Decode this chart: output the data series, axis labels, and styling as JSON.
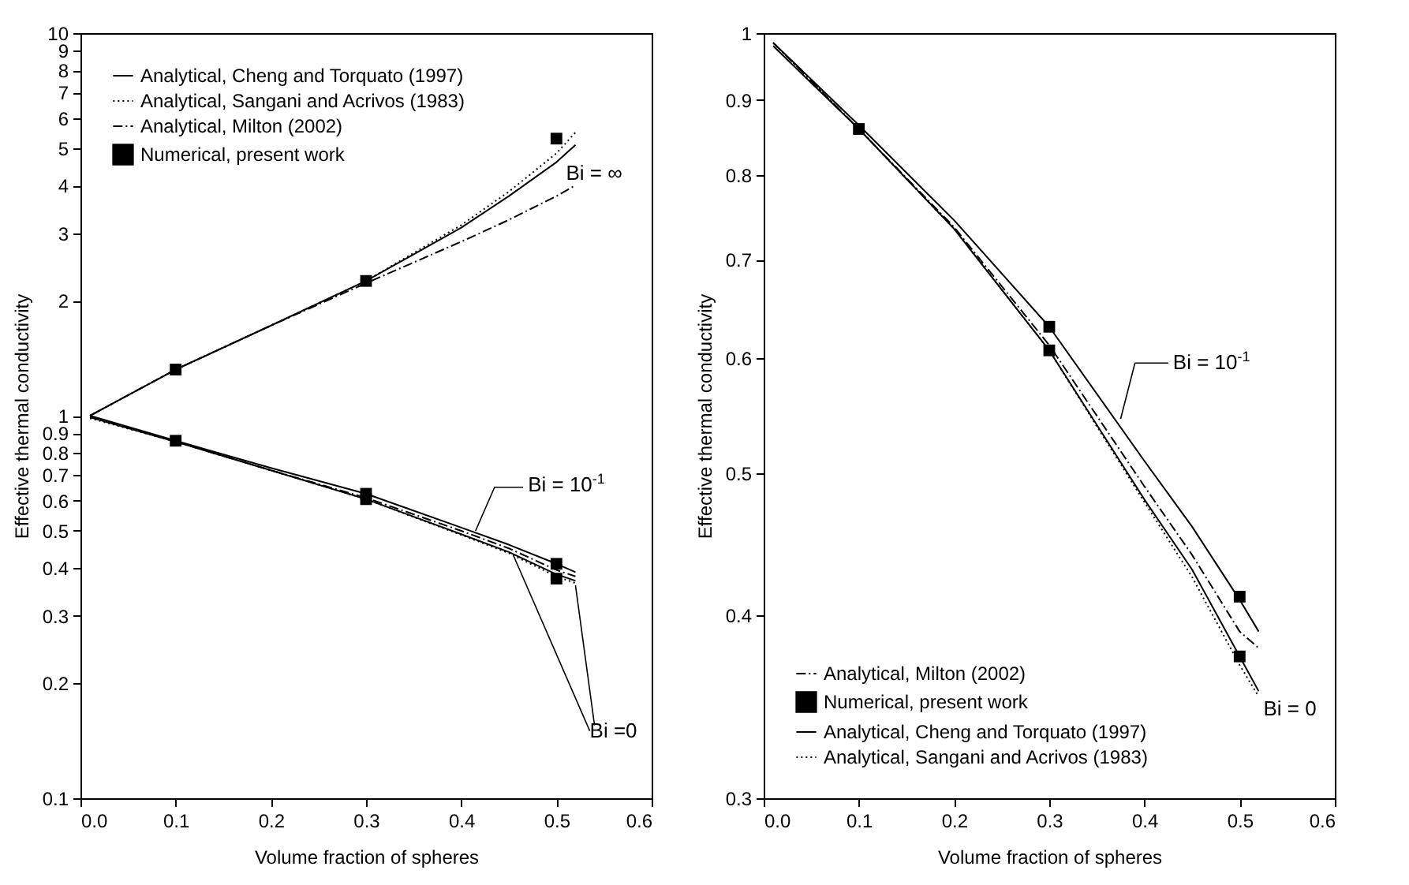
{
  "chart_data": [
    {
      "type": "line",
      "xlabel": "Volume fraction of spheres",
      "ylabel": "Effective thermal conductivity",
      "log": "y",
      "grid": false,
      "legend": "top left",
      "xlim": [
        0,
        0.6
      ],
      "xticks": [
        {
          "value": 0,
          "label": "0.0"
        },
        0.1,
        0.2,
        0.3,
        0.4,
        0.5,
        0.6
      ],
      "ylim": [
        0.1,
        10
      ],
      "yticks": [
        0.1,
        0.2,
        0.3,
        0.4,
        0.5,
        0.6,
        0.7,
        0.8,
        0.9,
        1,
        2,
        3,
        4,
        5,
        6,
        7,
        8,
        9,
        10
      ],
      "annotations": [
        "Bi = ∞",
        "Bi = 10$^{-1}$",
        {
          "text": "Bi =0",
          "x": 0.455,
          "y": 0.43
        }
      ],
      "series": [
        {
          "name": "Analytical, Cheng and Torquato (1997)",
          "color": "#000000",
          "line_style": "solid",
          "x": [
            0.01,
            0.1,
            0.2,
            0.3,
            0.4,
            0.45,
            0.5,
            0.52
          ],
          "values": [
            1.0,
            1.32,
            1.72,
            2.25,
            3.1,
            3.75,
            4.6,
            5.1
          ]
        },
        {
          "name": "Analytical, Sangani and Acrivos (1983)",
          "color": "#000000",
          "line_style": "dotted",
          "x": [
            0.01,
            0.1,
            0.2,
            0.3,
            0.4,
            0.45,
            0.5,
            0.52
          ],
          "values": [
            1.0,
            1.32,
            1.72,
            2.25,
            3.15,
            3.85,
            4.85,
            5.5
          ]
        },
        {
          "name": "Analytical, Milton (2002)",
          "color": "#000000",
          "line_style": "dashed",
          "x": [
            0.01,
            0.1,
            0.2,
            0.3,
            0.4,
            0.45,
            0.5,
            0.52
          ],
          "values": [
            1.0,
            1.32,
            1.72,
            2.22,
            2.85,
            3.25,
            3.75,
            4.0
          ]
        },
        {
          "name": "Numerical, present work",
          "type": "scatter",
          "marker": "square",
          "color": "#000000",
          "x": [
            0.1,
            0.3,
            0.5,
            0.1,
            0.3,
            0.3,
            0.5,
            0.5
          ],
          "values": [
            1.32,
            2.25,
            5.3,
            0.86,
            0.625,
            0.605,
            0.41,
            0.375
          ]
        },
        {
          "color": "#000000",
          "line_style": "solid",
          "x": [
            0.01,
            0.1,
            0.2,
            0.3,
            0.4,
            0.45,
            0.5,
            0.52
          ],
          "values": [
            1.0,
            0.86,
            0.73,
            0.625,
            0.51,
            0.46,
            0.41,
            0.39
          ]
        },
        {
          "color": "#000000",
          "line_style": "solid",
          "x": [
            0.01,
            0.1,
            0.2,
            0.3,
            0.4,
            0.45,
            0.5,
            0.52
          ],
          "values": [
            0.99,
            0.855,
            0.72,
            0.605,
            0.49,
            0.44,
            0.385,
            0.37
          ]
        },
        {
          "color": "#000000",
          "line_style": "dashed",
          "x": [
            0.01,
            0.1,
            0.2,
            0.3,
            0.4,
            0.45,
            0.5,
            0.52
          ],
          "values": [
            0.995,
            0.855,
            0.72,
            0.61,
            0.5,
            0.45,
            0.395,
            0.38
          ]
        },
        {
          "color": "#000000",
          "line_style": "dotted",
          "x": [
            0.01,
            0.1,
            0.2,
            0.3,
            0.4,
            0.45,
            0.5,
            0.52
          ],
          "values": [
            0.985,
            0.855,
            0.72,
            0.605,
            0.488,
            0.437,
            0.38,
            0.365
          ]
        }
      ]
    },
    {
      "type": "line",
      "xlabel": "Volume fraction of spheres",
      "ylabel": "Effective thermal conductivity",
      "log": "y",
      "grid": false,
      "legend": "bottom left",
      "xlim": [
        0,
        0.6
      ],
      "xticks": [
        {
          "value": 0,
          "label": "0.0"
        },
        0.1,
        0.2,
        0.3,
        0.4,
        0.5,
        0.6
      ],
      "ylim": [
        0.3,
        1
      ],
      "yticks": [
        0.3,
        0.4,
        0.5,
        0.6,
        0.7,
        0.8,
        0.9,
        1
      ],
      "annotations": [
        "Bi = 10$^{-1}$",
        "Bi = 0"
      ],
      "series": [
        {
          "name": "Analytical, Milton (2002)",
          "color": "#000000",
          "line_style": "dashed",
          "x": [
            0.01,
            0.1,
            0.2,
            0.3,
            0.4,
            0.45,
            0.5,
            0.52
          ],
          "values": [
            0.985,
            0.86,
            0.737,
            0.612,
            0.49,
            0.44,
            0.39,
            0.38
          ]
        },
        {
          "name": "Numerical, present work",
          "type": "scatter",
          "marker": "square",
          "color": "#000000",
          "x": [
            0.1,
            0.3,
            0.3,
            0.5,
            0.5
          ],
          "values": [
            0.86,
            0.63,
            0.607,
            0.412,
            0.375
          ]
        },
        {
          "name": "Analytical, Cheng and Torquato (1997)",
          "color": "#000000",
          "line_style": "solid",
          "x": [
            0.01,
            0.1,
            0.2,
            0.3,
            0.4,
            0.45,
            0.5,
            0.52
          ],
          "values": [
            0.985,
            0.865,
            0.745,
            0.63,
            0.51,
            0.46,
            0.41,
            0.39
          ]
        },
        {
          "name": "Analytical, Sangani and Acrivos (1983)",
          "color": "#000000",
          "line_style": "dotted",
          "x": [
            0.01,
            0.1,
            0.2,
            0.3,
            0.4,
            0.45,
            0.5,
            0.52
          ],
          "values": [
            0.985,
            0.86,
            0.735,
            0.607,
            0.478,
            0.425,
            0.37,
            0.352
          ]
        },
        {
          "color": "#000000",
          "line_style": "solid",
          "x": [
            0.01,
            0.1,
            0.2,
            0.3,
            0.4,
            0.45,
            0.5,
            0.52
          ],
          "values": [
            0.98,
            0.86,
            0.735,
            0.607,
            0.48,
            0.43,
            0.375,
            0.355
          ]
        }
      ]
    }
  ]
}
